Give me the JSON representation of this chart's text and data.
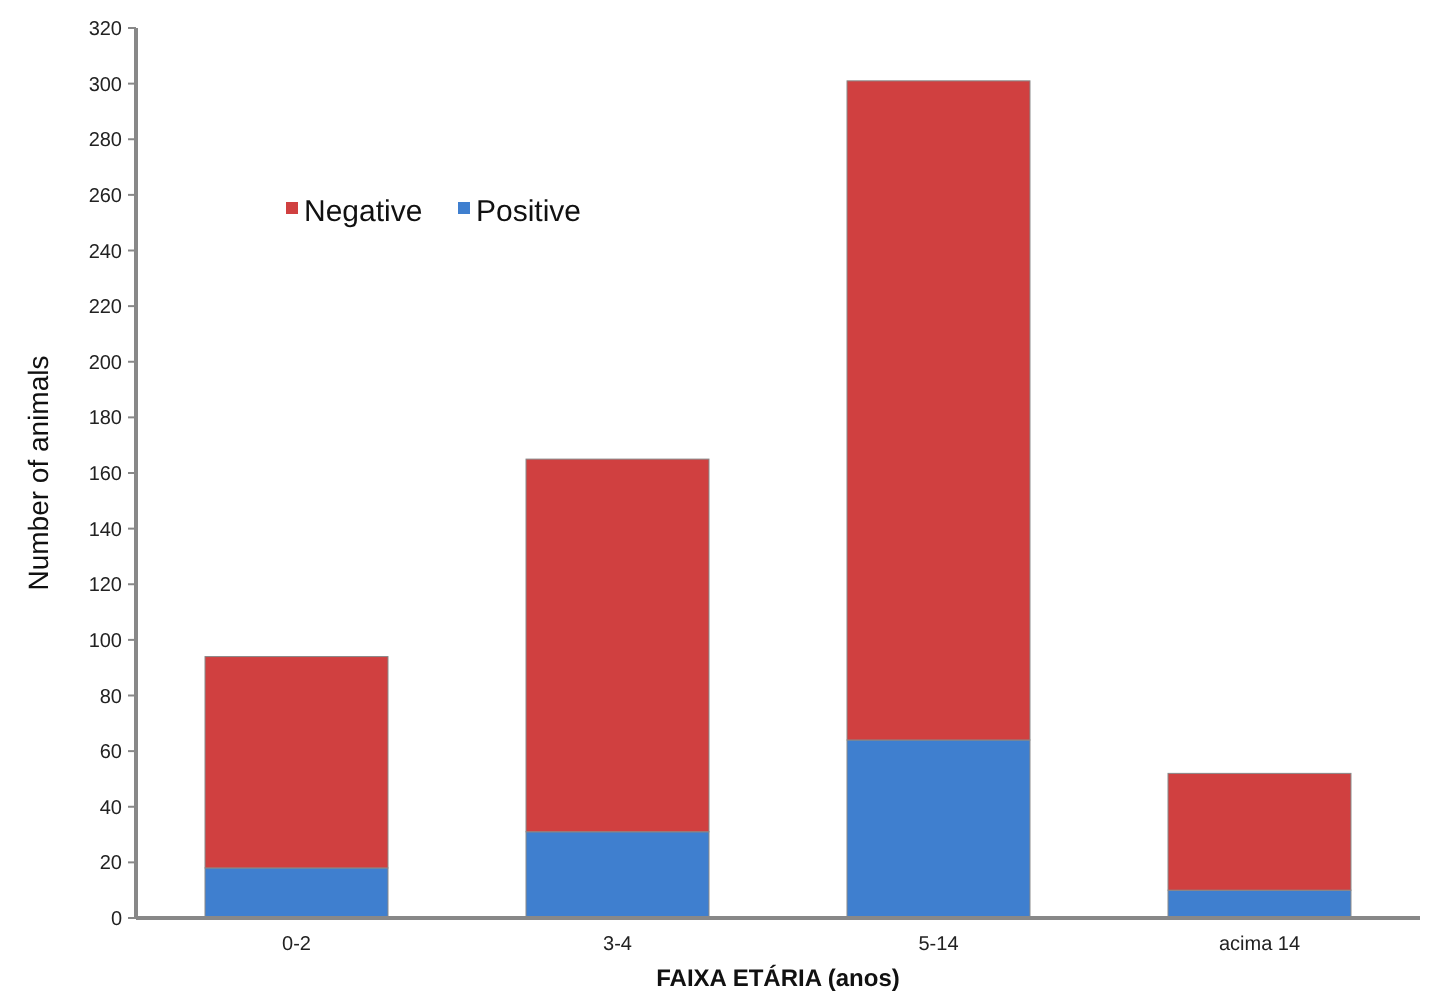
{
  "chart_data": {
    "type": "bar",
    "stacked": true,
    "xlabel": "FAIXA ETÁRIA (anos)",
    "ylabel": "Number of animals",
    "categories": [
      "0-2",
      "3-4",
      "5-14",
      "acima 14"
    ],
    "series": [
      {
        "name": "Positive",
        "color": "#3f7fcf",
        "values": [
          18,
          31,
          64,
          10
        ]
      },
      {
        "name": "Negative",
        "color": "#d04040",
        "values": [
          76,
          134,
          237,
          42
        ]
      }
    ],
    "ylim": [
      0,
      320
    ],
    "yticks": [
      0,
      20,
      40,
      60,
      80,
      100,
      120,
      140,
      160,
      180,
      200,
      220,
      240,
      260,
      280,
      300,
      320
    ],
    "grid": false,
    "legend": "top left"
  }
}
